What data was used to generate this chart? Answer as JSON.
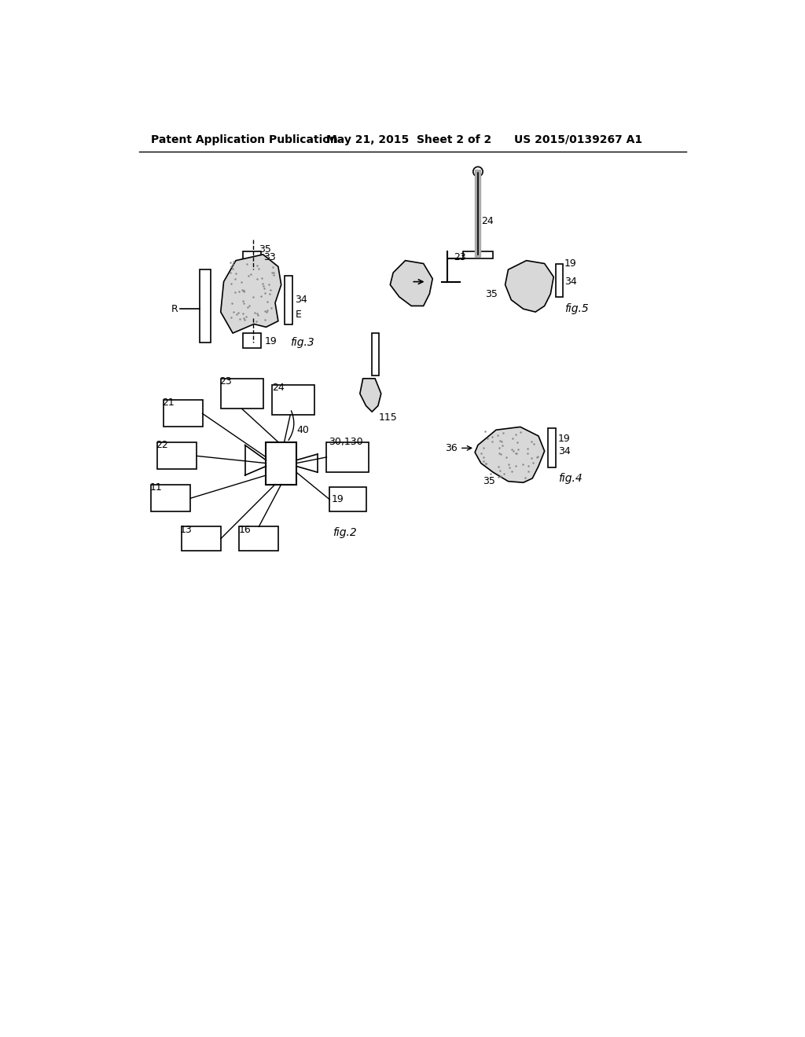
{
  "header_left": "Patent Application Publication",
  "header_center": "May 21, 2015  Sheet 2 of 2",
  "header_right": "US 2015/0139267 A1",
  "background_color": "#ffffff",
  "line_color": "#000000",
  "text_color": "#000000"
}
